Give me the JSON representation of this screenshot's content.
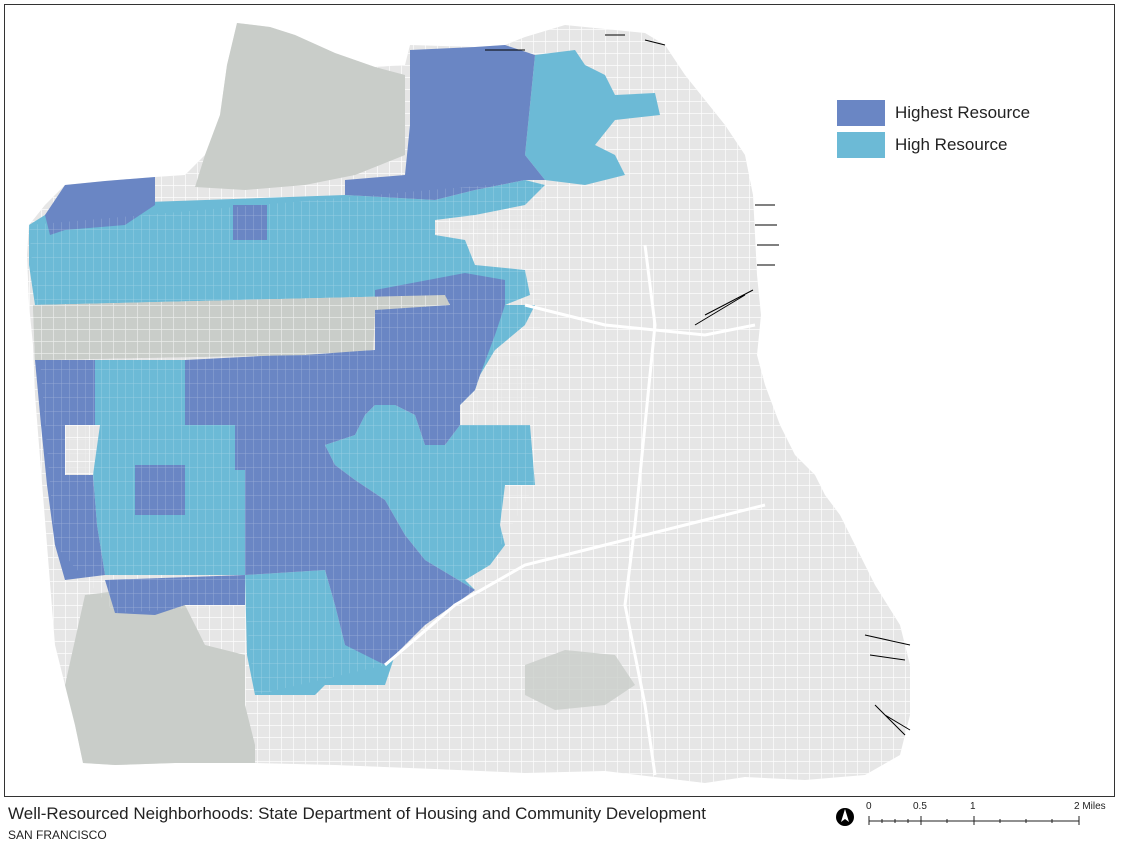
{
  "map": {
    "legend": [
      {
        "label": "Highest Resource",
        "color": "#6a86c4"
      },
      {
        "label": "High Resource",
        "color": "#6cbad6"
      }
    ],
    "land_color": "#e6e6e6",
    "park_color": "#c9cdc9",
    "street_color": "#ffffff"
  },
  "footer": {
    "title": "Well-Resourced Neighborhoods: State Department of Housing and Community Development",
    "subtitle": "SAN FRANCISCO"
  },
  "scale_bar": {
    "labels": [
      "0",
      "0.5",
      "1",
      "2 Miles"
    ]
  },
  "north_arrow": {
    "icon": "north-arrow-icon"
  }
}
